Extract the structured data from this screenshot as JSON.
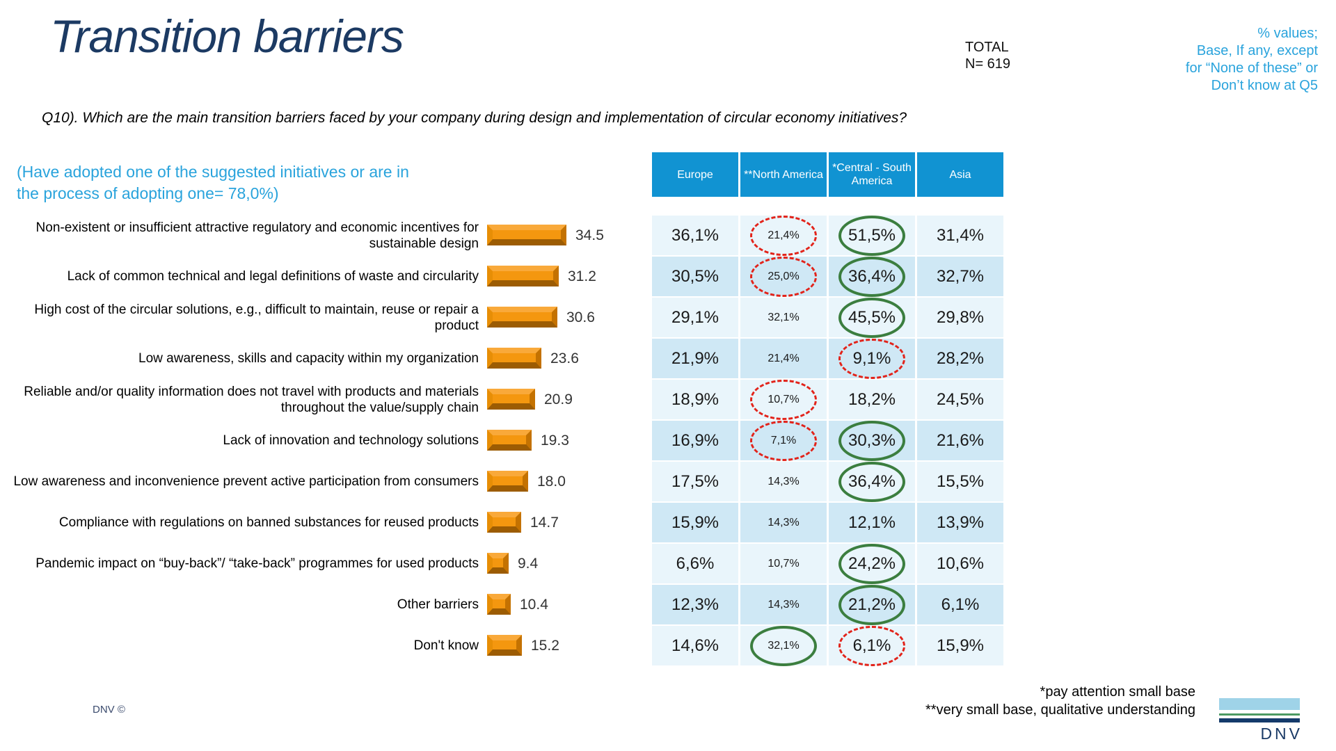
{
  "slide": {
    "title": "Transition barriers",
    "total_block": "TOTAL\nN= 619",
    "note_right": "% values;\nBase, If any, except\nfor “None of these” or\nDon’t know at Q5",
    "question": "Q10). Which are the main transition barriers faced by your company during design and implementation of circular economy initiatives?",
    "subtitle": "(Have adopted one of the suggested initiatives or are in\nthe process of adopting one= 78,0%)",
    "footnotes": "*pay attention small base\n**very small base, qualitative understanding",
    "copyright": "DNV ©",
    "logo_text": "DNV"
  },
  "chart_data": {
    "type": "bar",
    "orientation": "horizontal",
    "title": "Transition barriers",
    "categories": [
      "Non-existent or insufficient attractive regulatory and economic incentives for sustainable design",
      "Lack of common technical and legal definitions of waste and circularity",
      "High cost of the circular solutions, e.g., difficult to maintain, reuse or repair a product",
      "Low awareness, skills and capacity within my organization",
      "Reliable and/or quality information does not travel with products and materials throughout the value/supply chain",
      "Lack of innovation and technology solutions",
      "Low awareness and inconvenience prevent active participation from consumers",
      "Compliance with regulations on banned substances for reused products",
      "Pandemic impact on “buy-back”/ “take-back” programmes for used products",
      "Other barriers",
      "Don't know"
    ],
    "values": [
      34.5,
      31.2,
      30.6,
      23.6,
      20.9,
      19.3,
      18.0,
      14.7,
      9.4,
      10.4,
      15.2
    ],
    "value_labels": [
      "34.5",
      "31.2",
      "30.6",
      "23.6",
      "20.9",
      "19.3",
      "18.0",
      "14.7",
      "9.4",
      "10.4",
      "15.2"
    ],
    "bar_color": "#F4970F",
    "xlim": [
      0,
      40
    ],
    "grid": false,
    "legend": "none"
  },
  "table": {
    "columns": [
      "Europe",
      "**North America",
      "*Central - South America",
      "Asia"
    ],
    "header_color": "#1193D2",
    "row_colors": [
      "#E9F5FB",
      "#CFE8F5"
    ],
    "annotation_colors": {
      "green": "#3B7E3F",
      "red": "#E2231A"
    },
    "rows": [
      {
        "values": [
          "36,1%",
          "21,4%",
          "51,5%",
          "31,4%"
        ],
        "annotations": [
          null,
          "red",
          "green",
          null
        ]
      },
      {
        "values": [
          "30,5%",
          "25,0%",
          "36,4%",
          "32,7%"
        ],
        "annotations": [
          null,
          "red",
          "green",
          null
        ]
      },
      {
        "values": [
          "29,1%",
          "32,1%",
          "45,5%",
          "29,8%"
        ],
        "annotations": [
          null,
          null,
          "green",
          null
        ]
      },
      {
        "values": [
          "21,9%",
          "21,4%",
          "9,1%",
          "28,2%"
        ],
        "annotations": [
          null,
          null,
          "red",
          null
        ]
      },
      {
        "values": [
          "18,9%",
          "10,7%",
          "18,2%",
          "24,5%"
        ],
        "annotations": [
          null,
          "red",
          null,
          null
        ]
      },
      {
        "values": [
          "16,9%",
          "7,1%",
          "30,3%",
          "21,6%"
        ],
        "annotations": [
          null,
          "red",
          "green",
          null
        ]
      },
      {
        "values": [
          "17,5%",
          "14,3%",
          "36,4%",
          "15,5%"
        ],
        "annotations": [
          null,
          null,
          "green",
          null
        ]
      },
      {
        "values": [
          "15,9%",
          "14,3%",
          "12,1%",
          "13,9%"
        ],
        "annotations": [
          null,
          null,
          null,
          null
        ]
      },
      {
        "values": [
          "6,6%",
          "10,7%",
          "24,2%",
          "10,6%"
        ],
        "annotations": [
          null,
          null,
          "green",
          null
        ]
      },
      {
        "values": [
          "12,3%",
          "14,3%",
          "21,2%",
          "6,1%"
        ],
        "annotations": [
          null,
          null,
          "green",
          null
        ]
      },
      {
        "values": [
          "14,6%",
          "32,1%",
          "6,1%",
          "15,9%"
        ],
        "annotations": [
          null,
          "green",
          "red",
          null
        ]
      }
    ]
  }
}
